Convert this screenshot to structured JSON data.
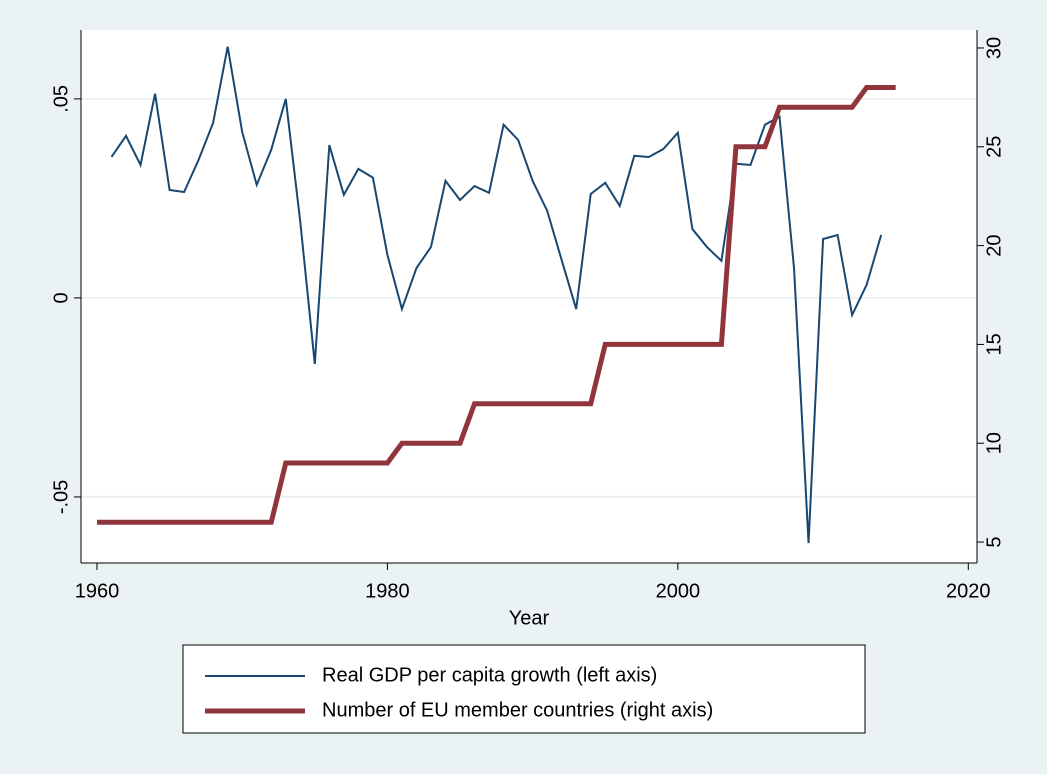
{
  "chart_data": {
    "type": "line",
    "x_label": "Year",
    "x": [
      1960,
      1961,
      1962,
      1963,
      1964,
      1965,
      1966,
      1967,
      1968,
      1969,
      1970,
      1971,
      1972,
      1973,
      1974,
      1975,
      1976,
      1977,
      1978,
      1979,
      1980,
      1981,
      1982,
      1983,
      1984,
      1985,
      1986,
      1987,
      1988,
      1989,
      1990,
      1991,
      1992,
      1993,
      1994,
      1995,
      1996,
      1997,
      1998,
      1999,
      2000,
      2001,
      2002,
      2003,
      2004,
      2005,
      2006,
      2007,
      2008,
      2009,
      2010,
      2011,
      2012,
      2013,
      2014,
      2015
    ],
    "series": [
      {
        "name": "Real GDP per capita growth (left axis)",
        "color": "#1a476f",
        "width": 2,
        "axis": "y",
        "values": [
          null,
          0.0354,
          0.0407,
          0.0334,
          0.0513,
          0.0271,
          0.0266,
          0.0347,
          0.044,
          0.0631,
          0.0417,
          0.0284,
          0.0372,
          0.05,
          0.0191,
          -0.0166,
          0.0384,
          0.0259,
          0.0324,
          0.0302,
          0.0108,
          -0.0028,
          0.0075,
          0.0128,
          0.0294,
          0.0246,
          0.0281,
          0.0264,
          0.0435,
          0.0397,
          0.0294,
          0.0219,
          0.0095,
          -0.0028,
          0.0261,
          0.0289,
          0.0231,
          0.0357,
          0.0354,
          0.0374,
          0.0415,
          0.0173,
          0.0128,
          0.0093,
          0.0337,
          0.0334,
          0.0435,
          0.0455,
          0.0075,
          -0.0616,
          0.0148,
          0.0158,
          -0.0043,
          0.0033,
          0.0158,
          null
        ]
      },
      {
        "name": "Number of EU member countries (right axis)",
        "color": "#90353b",
        "width": 5,
        "axis": "y2",
        "values": [
          6,
          6,
          6,
          6,
          6,
          6,
          6,
          6,
          6,
          6,
          6,
          6,
          6,
          9,
          9,
          9,
          9,
          9,
          9,
          9,
          9,
          10,
          10,
          10,
          10,
          10,
          12,
          12,
          12,
          12,
          12,
          12,
          12,
          12,
          12,
          15,
          15,
          15,
          15,
          15,
          15,
          15,
          15,
          15,
          25,
          25,
          25,
          27,
          27,
          27,
          27,
          27,
          27,
          28,
          28,
          28
        ]
      }
    ],
    "xlim": [
      1958.9,
      2020.6
    ],
    "xticks": [
      1960,
      1980,
      2000,
      2020
    ],
    "ylim": [
      -0.0666,
      0.0673
    ],
    "yticks": [
      {
        "value": -0.05,
        "label": "-.05"
      },
      0,
      {
        "value": 0.05,
        "label": ".05"
      }
    ],
    "y2lim": [
      3.94,
      30.91
    ],
    "y2ticks": [
      5,
      10,
      15,
      20,
      25,
      30
    ],
    "grid": true,
    "legend": "bottom"
  }
}
